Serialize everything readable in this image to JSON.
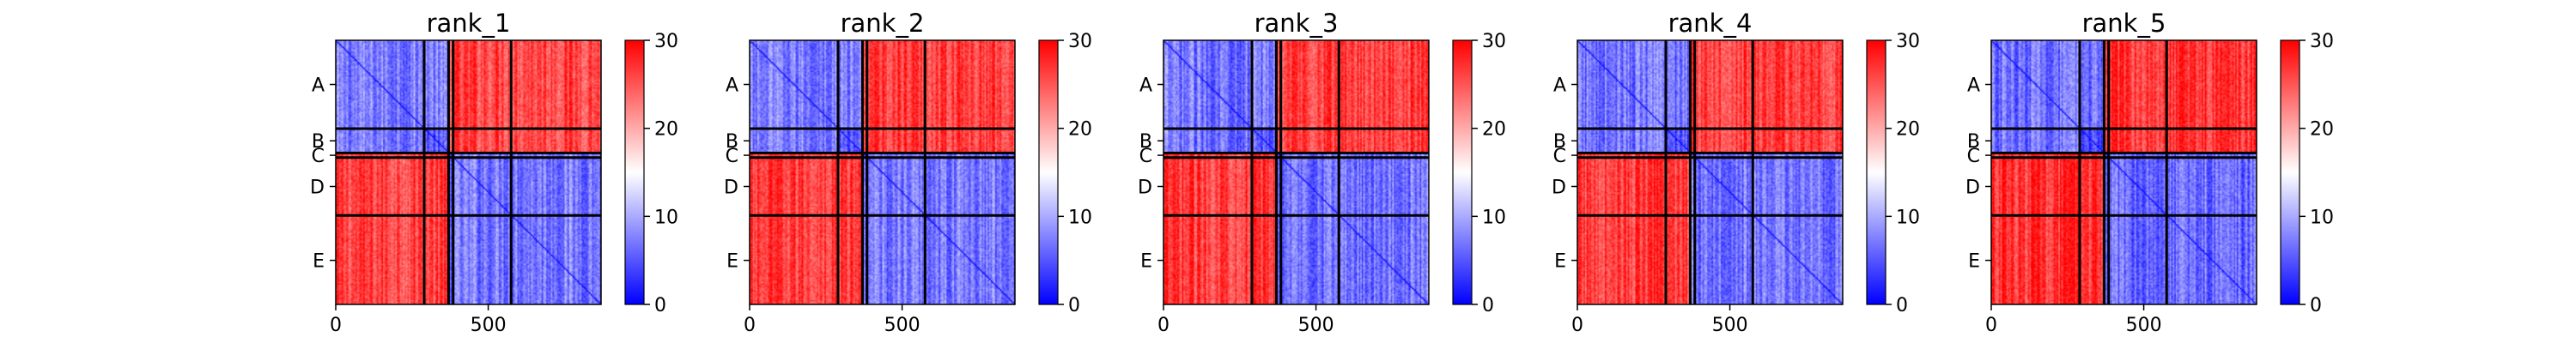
{
  "chart_data": {
    "type": "heatmap",
    "panels": [
      {
        "title": "rank_1",
        "intensity": 0.72
      },
      {
        "title": "rank_2",
        "intensity": 0.76
      },
      {
        "title": "rank_3",
        "intensity": 0.8
      },
      {
        "title": "rank_4",
        "intensity": 0.78
      },
      {
        "title": "rank_5",
        "intensity": 0.92
      }
    ],
    "groups": [
      {
        "label": "A",
        "start": 0,
        "end": 290
      },
      {
        "label": "B",
        "start": 290,
        "end": 370
      },
      {
        "label": "C",
        "start": 370,
        "end": 385
      },
      {
        "label": "D",
        "start": 385,
        "end": 575
      },
      {
        "label": "E",
        "start": 575,
        "end": 870
      }
    ],
    "block_means": [
      [
        8,
        8,
        25,
        25,
        25
      ],
      [
        8,
        6,
        25,
        25,
        25
      ],
      [
        25,
        25,
        8,
        8,
        8
      ],
      [
        25,
        25,
        8,
        8,
        8
      ],
      [
        25,
        25,
        8,
        8,
        8
      ]
    ],
    "x_ticks": [
      0,
      500
    ],
    "x_tick_labels": [
      "0",
      "500"
    ],
    "xlim": [
      0,
      870
    ],
    "colorbar": {
      "min": 0,
      "max": 30,
      "ticks": [
        0,
        10,
        20,
        30
      ],
      "tick_labels": [
        "0",
        "10",
        "20",
        "30"
      ],
      "colormap": "bwr",
      "low_color": "#0000ff",
      "mid_color": "#ffffff",
      "high_color": "#ff0000"
    },
    "grid": false
  }
}
